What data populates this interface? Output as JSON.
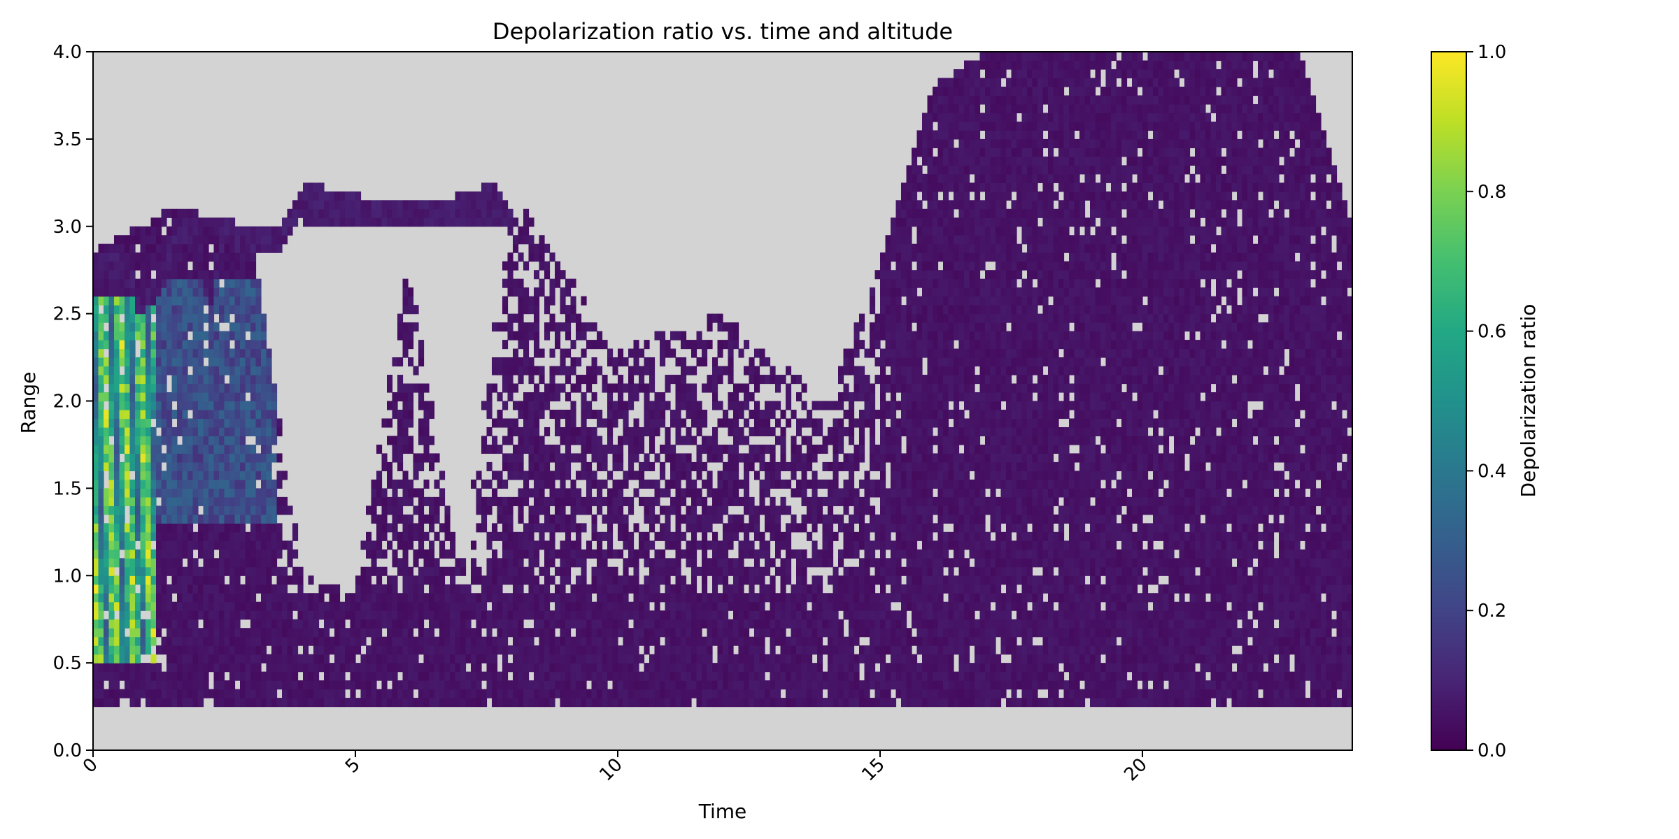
{
  "chart_data": {
    "type": "heatmap",
    "title": "Depolarization ratio vs. time and altitude",
    "xlabel": "Time",
    "ylabel": "Range",
    "xlim": [
      0,
      24
    ],
    "ylim": [
      0,
      4.0
    ],
    "xticks": [
      0,
      5,
      10,
      15,
      20
    ],
    "xtick_labels": [
      "0",
      "5",
      "10",
      "15",
      "20"
    ],
    "xtick_rotation_deg": 45,
    "yticks": [
      0.0,
      0.5,
      1.0,
      1.5,
      2.0,
      2.5,
      3.0,
      3.5,
      4.0
    ],
    "ytick_labels": [
      "0.0",
      "0.5",
      "1.0",
      "1.5",
      "2.0",
      "2.5",
      "3.0",
      "3.5",
      "4.0"
    ],
    "colormap": "viridis",
    "missing_value_color": "#d3d3d3",
    "grid": false,
    "colorbar": {
      "label": "Depolarization ratio",
      "range": [
        0.0,
        1.0
      ],
      "ticks": [
        0.0,
        0.2,
        0.4,
        0.6,
        0.8,
        1.0
      ],
      "tick_labels": [
        "0.0",
        "0.2",
        "0.4",
        "0.6",
        "0.8",
        "1.0"
      ],
      "placement": "right"
    },
    "data_bottom_range": 0.23,
    "cloud_top_profile": [
      [
        0.0,
        2.85
      ],
      [
        0.6,
        2.85
      ],
      [
        0.9,
        2.62
      ],
      [
        1.3,
        2.78
      ],
      [
        1.6,
        3.02
      ],
      [
        2.0,
        3.1
      ],
      [
        2.2,
        2.65
      ],
      [
        2.5,
        3.05
      ],
      [
        3.0,
        3.0
      ],
      [
        3.6,
        3.02
      ],
      [
        4.1,
        3.25
      ],
      [
        4.5,
        3.22
      ],
      [
        5.4,
        3.15
      ],
      [
        6.5,
        3.15
      ],
      [
        7.0,
        3.18
      ],
      [
        7.6,
        3.25
      ],
      [
        8.0,
        3.1
      ]
    ],
    "cloud_layer_time_range": [
      4.0,
      8.0
    ],
    "cloud_layer_range_span": [
      3.02,
      3.25
    ],
    "signal_top_profile": [
      [
        0.0,
        2.85
      ],
      [
        1.5,
        3.1
      ],
      [
        3.0,
        3.0
      ],
      [
        4.0,
        1.0
      ],
      [
        5.0,
        0.9
      ],
      [
        6.0,
        2.8
      ],
      [
        7.0,
        1.0
      ],
      [
        8.0,
        3.2
      ],
      [
        10.0,
        2.3
      ],
      [
        12.0,
        2.5
      ],
      [
        14.0,
        2.0
      ],
      [
        15.0,
        2.8
      ],
      [
        16.0,
        3.8
      ],
      [
        17.0,
        4.0
      ],
      [
        23.0,
        4.0
      ],
      [
        24.0,
        3.0
      ]
    ],
    "high_depol_region": {
      "time_range": [
        0.0,
        1.2
      ],
      "range_span": [
        0.5,
        2.6
      ],
      "max_value": 1.0
    },
    "moderate_depol_region": {
      "time_range": [
        1.0,
        3.5
      ],
      "range_span": [
        1.3,
        2.7
      ],
      "typical_value": 0.25
    },
    "background_value": 0.03
  }
}
